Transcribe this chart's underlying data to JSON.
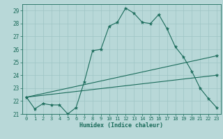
{
  "title": "",
  "xlabel": "Humidex (Indice chaleur)",
  "ylabel": "",
  "background_color": "#b8d8d8",
  "grid_color": "#9ec4c4",
  "line_color": "#1a6b5a",
  "xlim": [
    -0.5,
    23.5
  ],
  "ylim": [
    21.0,
    29.5
  ],
  "yticks": [
    21,
    22,
    23,
    24,
    25,
    26,
    27,
    28,
    29
  ],
  "xticks": [
    0,
    1,
    2,
    3,
    4,
    5,
    6,
    7,
    8,
    9,
    10,
    11,
    12,
    13,
    14,
    15,
    16,
    17,
    18,
    19,
    20,
    21,
    22,
    23
  ],
  "series1_x": [
    0,
    1,
    2,
    3,
    4,
    5,
    6,
    7,
    8,
    9,
    10,
    11,
    12,
    13,
    14,
    15,
    16,
    17,
    18,
    19,
    20,
    21,
    22,
    23
  ],
  "series1_y": [
    22.3,
    21.4,
    21.8,
    21.7,
    21.7,
    21.0,
    21.5,
    23.5,
    25.9,
    26.0,
    27.8,
    28.1,
    29.2,
    28.8,
    28.1,
    28.0,
    28.7,
    27.6,
    26.2,
    25.4,
    24.3,
    23.0,
    22.2,
    21.5
  ],
  "series2_x": [
    0,
    23
  ],
  "series2_y": [
    22.3,
    25.5
  ],
  "series3_x": [
    0,
    23
  ],
  "series3_y": [
    22.3,
    24.0
  ]
}
